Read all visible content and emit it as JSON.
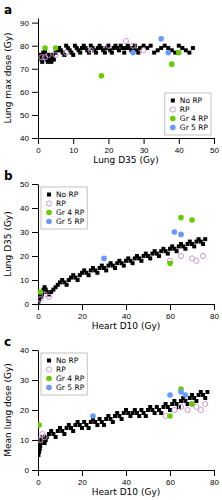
{
  "chart_data": [
    {
      "type": "scatter",
      "title": "a",
      "xlabel": "Lung D35 (Gy)",
      "ylabel": "Lung max dose (Gy)",
      "xlim": [
        0,
        50
      ],
      "ylim": [
        40,
        92
      ],
      "xticks": [
        0,
        10,
        20,
        30,
        40,
        50
      ],
      "yticks": [
        40,
        50,
        60,
        70,
        80,
        90
      ],
      "legend": "lower right",
      "series": [
        {
          "name": "No RP",
          "color": "#000000",
          "marker": "square",
          "x": [
            0.5,
            1,
            1.2,
            1.5,
            1.8,
            2,
            2.2,
            2.5,
            2.8,
            3,
            3.2,
            3.5,
            3.8,
            4,
            4.2,
            4.5,
            0.3,
            0.8,
            1.5,
            2,
            2.5,
            3,
            3.5,
            4,
            5,
            5.5,
            6,
            6.5,
            7,
            7.5,
            8,
            8.5,
            9,
            9.5,
            10,
            10.5,
            11,
            11.5,
            12,
            12.5,
            13,
            13.5,
            14,
            14.5,
            15,
            15.5,
            16,
            16.5,
            17,
            17.5,
            18,
            18.5,
            19,
            19.5,
            20,
            20.5,
            21,
            21.5,
            22,
            22.5,
            23,
            23.5,
            24,
            24.5,
            25,
            25.5,
            26,
            26.5,
            27,
            27.5,
            28,
            28.5,
            29,
            30,
            31,
            32,
            33,
            34,
            35,
            36,
            37,
            38,
            39,
            40,
            41,
            42,
            43,
            44
          ],
          "values": [
            75,
            74,
            73,
            75,
            76,
            77,
            75,
            74,
            73,
            75,
            76,
            74,
            73,
            75,
            76,
            74,
            75,
            76,
            77,
            78,
            76,
            75,
            74,
            76,
            77,
            78,
            79,
            78,
            77,
            76,
            80,
            79,
            78,
            77,
            76,
            80,
            79,
            78,
            77,
            79,
            80,
            79,
            78,
            77,
            80,
            79,
            78,
            77,
            79,
            80,
            79,
            78,
            77,
            79,
            80,
            78,
            77,
            79,
            80,
            79,
            78,
            80,
            79,
            77,
            79,
            80,
            79,
            78,
            79,
            80,
            78,
            77,
            79,
            80,
            79,
            80,
            77,
            78,
            79,
            80,
            79,
            78,
            77,
            80,
            79,
            78,
            77,
            79
          ]
        },
        {
          "name": "RP",
          "color": "#cc99cc",
          "marker": "open-circle",
          "x": [
            1,
            2,
            3,
            5,
            8,
            15,
            20,
            25,
            27,
            30
          ],
          "values": [
            75,
            75,
            76,
            76,
            77,
            78,
            80,
            82,
            80,
            78
          ]
        },
        {
          "name": "Gr 4 RP",
          "color": "#66cc00",
          "marker": "circle",
          "x": [
            2,
            5,
            18,
            38,
            40
          ],
          "values": [
            79,
            79,
            67,
            72,
            77
          ]
        },
        {
          "name": "Gr 5 RP",
          "color": "#6699ff",
          "marker": "circle",
          "x": [
            27,
            35,
            37
          ],
          "values": [
            77,
            83,
            77
          ]
        }
      ]
    },
    {
      "type": "scatter",
      "title": "b",
      "xlabel": "Heart D10 (Gy)",
      "ylabel": "Lung D35 (Gy)",
      "xlim": [
        0,
        80
      ],
      "ylim": [
        0,
        50
      ],
      "xticks": [
        0,
        20,
        40,
        60,
        80
      ],
      "yticks": [
        0,
        10,
        20,
        30,
        40,
        50
      ],
      "legend": "upper left",
      "series": [
        {
          "name": "No RP",
          "color": "#000000",
          "marker": "square",
          "x": [
            0.2,
            0.5,
            0.8,
            1,
            1.2,
            1.5,
            1.8,
            2,
            2.5,
            3,
            3.5,
            4,
            5,
            6,
            7,
            8,
            9,
            10,
            11,
            12,
            13,
            14,
            15,
            16,
            17,
            18,
            19,
            20,
            21,
            22,
            23,
            24,
            25,
            26,
            27,
            28,
            29,
            30,
            31,
            32,
            33,
            34,
            35,
            36,
            37,
            38,
            39,
            40,
            41,
            42,
            43,
            44,
            45,
            46,
            47,
            48,
            49,
            50,
            51,
            52,
            53,
            54,
            55,
            56,
            57,
            58,
            59,
            60,
            61,
            62,
            63,
            64,
            65,
            66,
            67,
            68,
            69,
            70,
            71,
            72,
            73,
            74,
            75,
            76
          ],
          "values": [
            1,
            2,
            3,
            4,
            5,
            3,
            4,
            5,
            6,
            7,
            6,
            5,
            4,
            5,
            6,
            7,
            8,
            9,
            10,
            9,
            8,
            10,
            11,
            12,
            11,
            10,
            12,
            13,
            14,
            13,
            12,
            14,
            15,
            14,
            13,
            15,
            16,
            15,
            14,
            16,
            17,
            16,
            15,
            17,
            18,
            17,
            16,
            18,
            19,
            18,
            17,
            19,
            20,
            19,
            18,
            20,
            21,
            20,
            19,
            21,
            22,
            21,
            20,
            22,
            23,
            22,
            21,
            23,
            24,
            23,
            22,
            24,
            25,
            24,
            23,
            25,
            26,
            25,
            24,
            26,
            27,
            26,
            25,
            27
          ]
        },
        {
          "name": "RP",
          "color": "#cc99cc",
          "marker": "open-circle",
          "x": [
            1,
            3,
            5,
            60,
            65,
            70,
            72,
            75
          ],
          "values": [
            2,
            4,
            3,
            18,
            20,
            19,
            18,
            20
          ]
        },
        {
          "name": "Gr 4 RP",
          "color": "#66cc00",
          "marker": "circle",
          "x": [
            1,
            60,
            65,
            70
          ],
          "values": [
            5,
            17,
            36,
            35
          ]
        },
        {
          "name": "Gr 5 RP",
          "color": "#6699ff",
          "marker": "circle",
          "x": [
            30,
            62,
            65
          ],
          "values": [
            19,
            30,
            29
          ]
        }
      ]
    },
    {
      "type": "scatter",
      "title": "c",
      "xlabel": "Heart D10 (Gy)",
      "ylabel": "Mean lung dose (Gy)",
      "xlim": [
        0,
        80
      ],
      "ylim": [
        0,
        40
      ],
      "xticks": [
        0,
        20,
        40,
        60,
        80
      ],
      "yticks": [
        0,
        10,
        20,
        30,
        40
      ],
      "legend": "upper left",
      "series": [
        {
          "name": "No RP",
          "color": "#000000",
          "marker": "square",
          "x": [
            0.2,
            0.5,
            0.8,
            1,
            1.2,
            1.5,
            2,
            2.5,
            3,
            3.5,
            4,
            5,
            6,
            7,
            8,
            9,
            10,
            11,
            12,
            13,
            14,
            15,
            16,
            17,
            18,
            19,
            20,
            21,
            22,
            23,
            24,
            25,
            26,
            27,
            28,
            29,
            30,
            31,
            32,
            33,
            34,
            35,
            36,
            37,
            38,
            39,
            40,
            41,
            42,
            43,
            44,
            45,
            46,
            47,
            48,
            49,
            50,
            51,
            52,
            53,
            54,
            55,
            56,
            57,
            58,
            59,
            60,
            61,
            62,
            63,
            64,
            65,
            66,
            67,
            68,
            69,
            70,
            71,
            72,
            73,
            74,
            75,
            76,
            77
          ],
          "values": [
            5,
            6,
            7,
            8,
            9,
            10,
            11,
            10,
            9,
            10,
            11,
            12,
            13,
            12,
            11,
            13,
            14,
            13,
            12,
            14,
            15,
            14,
            13,
            15,
            16,
            15,
            14,
            16,
            15,
            14,
            16,
            17,
            16,
            15,
            17,
            16,
            15,
            17,
            18,
            17,
            16,
            18,
            19,
            18,
            17,
            19,
            20,
            19,
            18,
            19,
            20,
            19,
            18,
            20,
            19,
            18,
            20,
            21,
            20,
            19,
            21,
            20,
            19,
            21,
            22,
            21,
            20,
            22,
            23,
            22,
            21,
            23,
            24,
            23,
            22,
            24,
            25,
            24,
            23,
            25,
            26,
            25,
            24,
            26
          ]
        },
        {
          "name": "RP",
          "color": "#cc99cc",
          "marker": "open-circle",
          "x": [
            1,
            2,
            3,
            58,
            62,
            65,
            68,
            70,
            72,
            74,
            76
          ],
          "values": [
            10,
            12,
            11,
            18,
            20,
            21,
            20,
            22,
            21,
            20,
            22
          ]
        },
        {
          "name": "Gr 4 RP",
          "color": "#66cc00",
          "marker": "circle",
          "x": [
            0.5,
            60,
            65,
            70
          ],
          "values": [
            15,
            18,
            27,
            22
          ]
        },
        {
          "name": "Gr 5 RP",
          "color": "#6699ff",
          "marker": "circle",
          "x": [
            25,
            60,
            65,
            67
          ],
          "values": [
            18,
            25,
            26,
            25
          ]
        }
      ]
    }
  ]
}
